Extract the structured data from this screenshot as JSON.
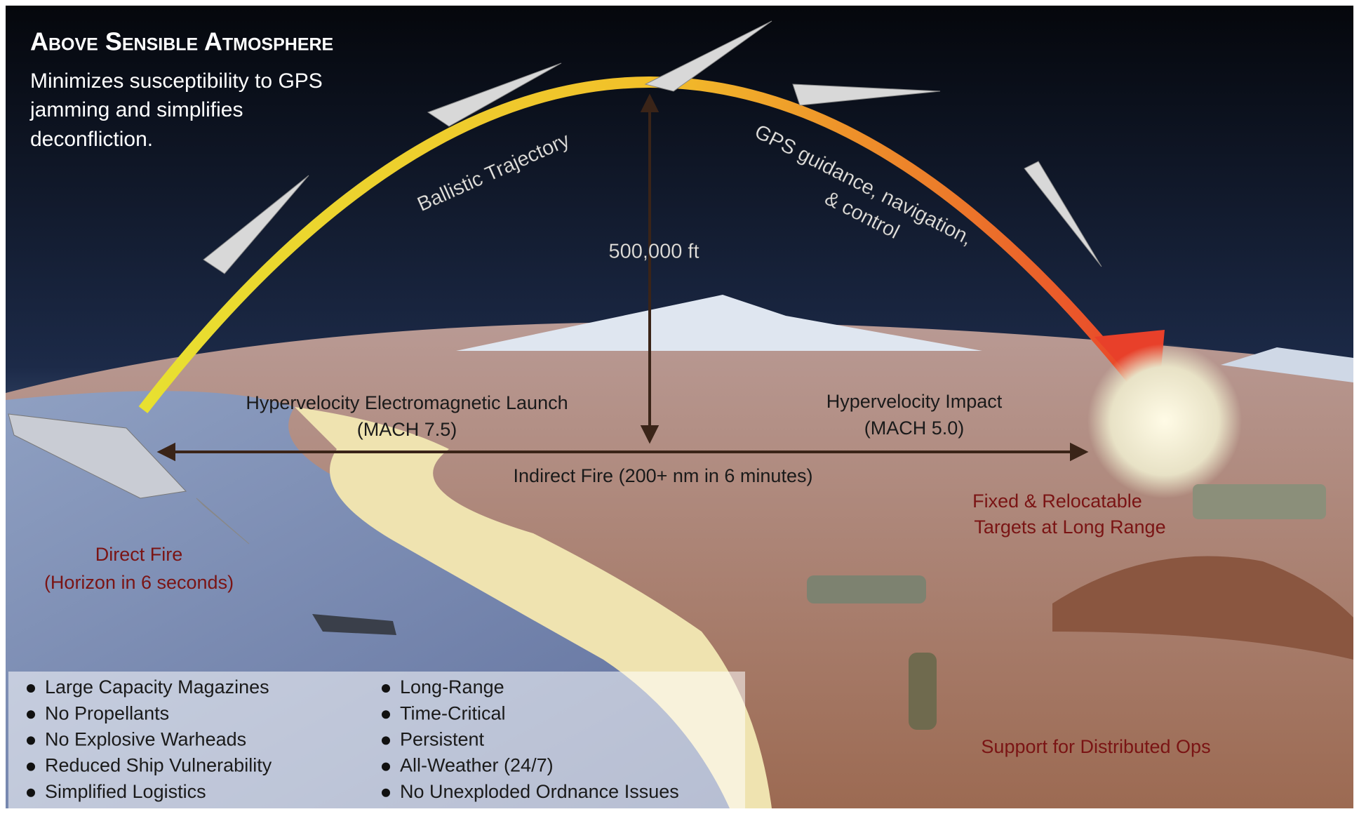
{
  "header": {
    "title": "Above Sensible Atmosphere",
    "subtitle": [
      "Minimizes susceptibility to GPS",
      "jamming and simplifies",
      "deconfliction."
    ]
  },
  "trajectory": {
    "ballistic": "Ballistic Trajectory",
    "guidance": [
      "GPS guidance, navigation,",
      "& control"
    ],
    "altitude": "500,000 ft"
  },
  "launch": [
    "Hypervelocity Electromagnetic Launch",
    "(MACH 7.5)"
  ],
  "impact": [
    "Hypervelocity Impact",
    "(MACH 5.0)"
  ],
  "indirect_fire": "Indirect Fire (200+ nm in 6 minutes)",
  "direct_fire": [
    "Direct Fire",
    "(Horizon in 6 seconds)"
  ],
  "targets": [
    "Fixed & Relocatable",
    "Targets at Long Range"
  ],
  "support": "Support for Distributed Ops",
  "bullets": {
    "left": [
      "Large Capacity Magazines",
      "No Propellants",
      "No Explosive Warheads",
      "Reduced Ship Vulnerability",
      "Simplified Logistics"
    ],
    "right": [
      "Long-Range",
      "Time-Critical",
      "Persistent",
      "All-Weather (24/7)",
      "No Unexploded Ordnance Issues"
    ]
  }
}
